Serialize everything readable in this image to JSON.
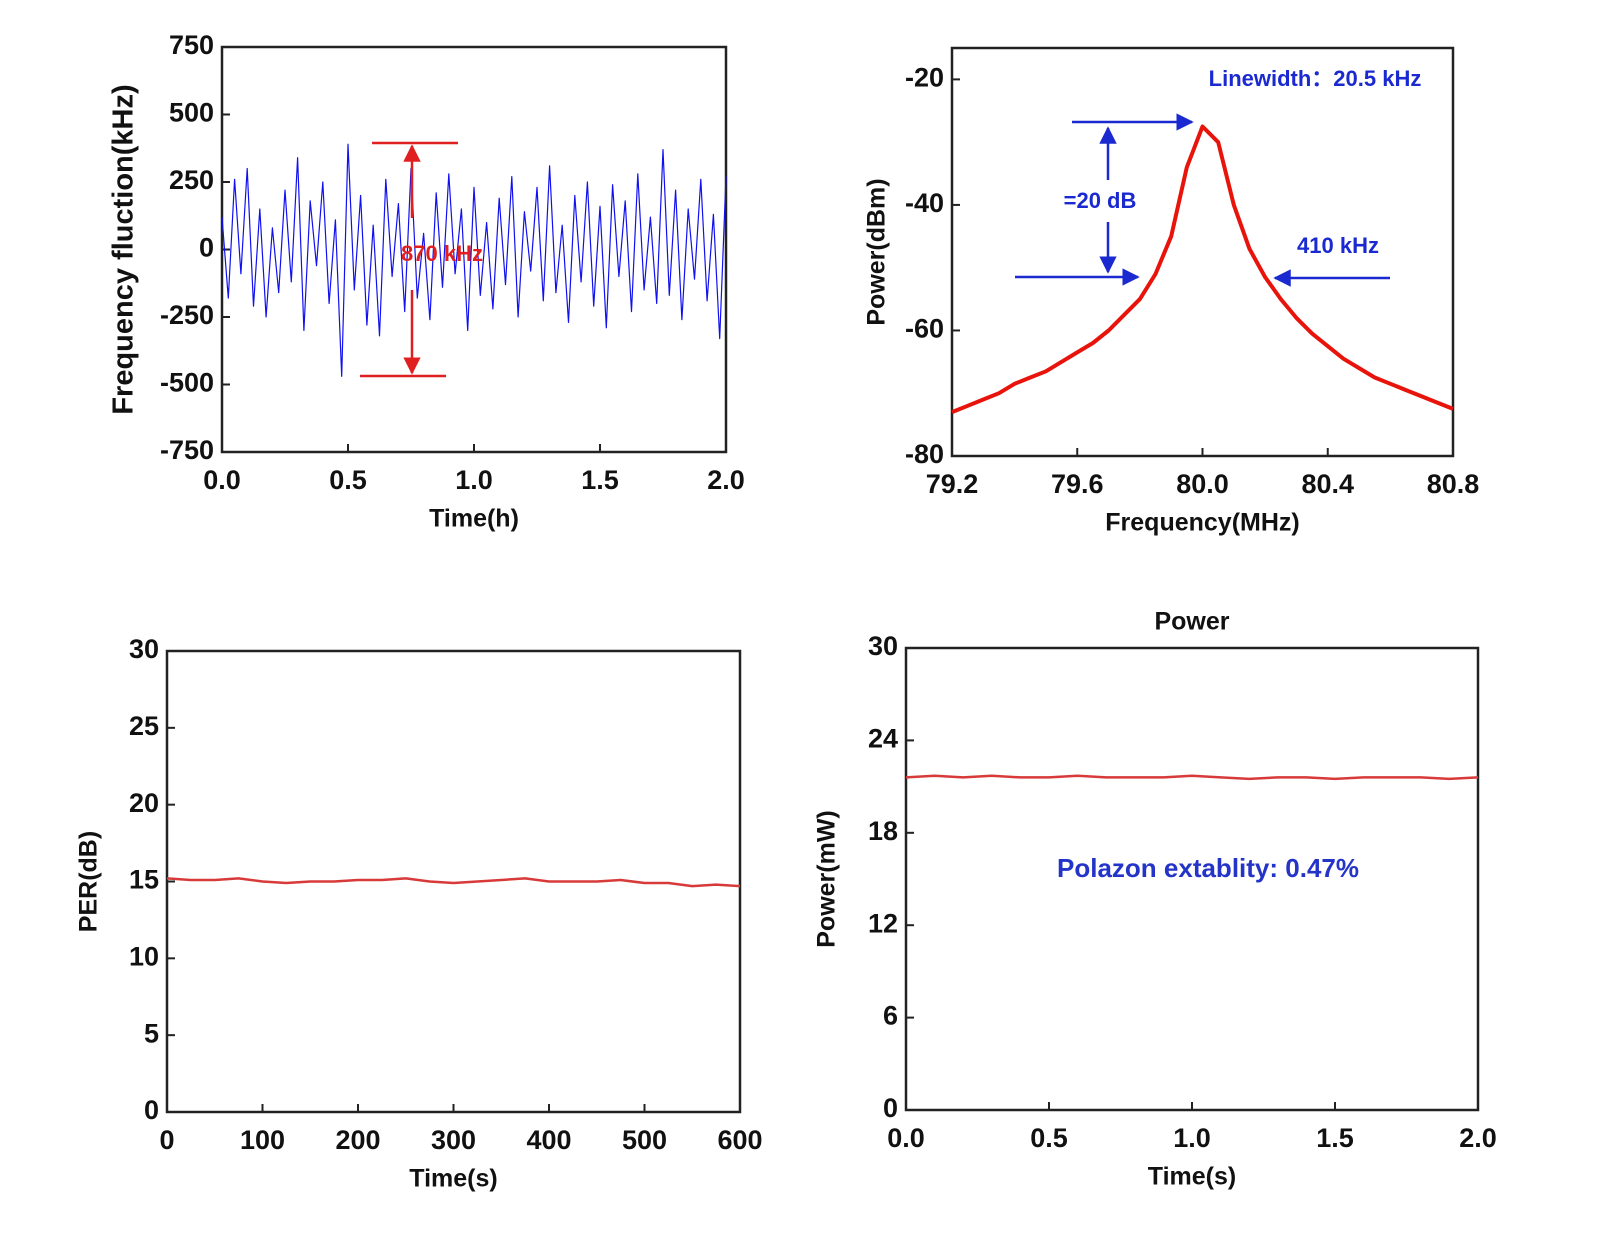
{
  "chart_data": [
    {
      "type": "line",
      "x_label": "Time(h)",
      "y_label": "Frequency fluction(kHz)",
      "color": "#1010f0",
      "xlim": [
        0,
        2
      ],
      "ylim": [
        -750,
        750
      ],
      "xticks": [
        {
          "value": 0,
          "label": "0.0"
        },
        0.5,
        {
          "value": 1,
          "label": "1.0"
        },
        1.5,
        {
          "value": 2,
          "label": "2.0"
        }
      ],
      "yticks": [
        -750,
        -500,
        -250,
        0,
        250,
        500,
        750
      ],
      "x": [
        0,
        0.025,
        0.05,
        0.075,
        0.1,
        0.125,
        0.15,
        0.175,
        0.2,
        0.225,
        0.25,
        0.275,
        0.3,
        0.325,
        0.35,
        0.375,
        0.4,
        0.425,
        0.45,
        0.475,
        0.5,
        0.525,
        0.55,
        0.575,
        0.6,
        0.625,
        0.65,
        0.675,
        0.7,
        0.725,
        0.75,
        0.775,
        0.8,
        0.825,
        0.85,
        0.875,
        0.9,
        0.925,
        0.95,
        0.975,
        1,
        1.025,
        1.05,
        1.075,
        1.1,
        1.125,
        1.15,
        1.175,
        1.2,
        1.225,
        1.25,
        1.275,
        1.3,
        1.325,
        1.35,
        1.375,
        1.4,
        1.425,
        1.45,
        1.475,
        1.5,
        1.525,
        1.55,
        1.575,
        1.6,
        1.625,
        1.65,
        1.675,
        1.7,
        1.725,
        1.75,
        1.775,
        1.8,
        1.825,
        1.85,
        1.875,
        1.9,
        1.925,
        1.95,
        1.975,
        2
      ],
      "values": [
        120,
        -180,
        260,
        -90,
        300,
        -210,
        150,
        -250,
        80,
        -160,
        220,
        -120,
        340,
        -300,
        180,
        -60,
        250,
        -200,
        110,
        -470,
        390,
        -150,
        200,
        -280,
        90,
        -320,
        260,
        -100,
        170,
        -230,
        300,
        -180,
        60,
        -260,
        210,
        -140,
        280,
        -90,
        150,
        -300,
        230,
        -170,
        100,
        -220,
        190,
        -130,
        270,
        -250,
        140,
        -80,
        230,
        -190,
        310,
        -160,
        90,
        -270,
        200,
        -120,
        250,
        -210,
        160,
        -290,
        240,
        -100,
        180,
        -230,
        280,
        -150,
        120,
        -200,
        370,
        -170,
        220,
        -260,
        150,
        -110,
        260,
        -190,
        130,
        -330,
        270
      ],
      "annotations": [
        "870 kHz"
      ]
    },
    {
      "type": "line",
      "x_label": "Frequency(MHz)",
      "y_label": "Power(dBm)",
      "color": "#e8140c",
      "xlim": [
        79.2,
        80.8
      ],
      "ylim": [
        -80,
        -15
      ],
      "xticks": [
        79.2,
        79.6,
        {
          "value": 80,
          "label": "80.0"
        },
        80.4,
        80.8
      ],
      "yticks": [
        -80,
        -60,
        -40,
        -20
      ],
      "x": [
        79.2,
        79.25,
        79.3,
        79.35,
        79.4,
        79.45,
        79.5,
        79.55,
        79.6,
        79.65,
        79.7,
        79.75,
        79.8,
        79.85,
        79.9,
        79.95,
        80,
        80.05,
        80.1,
        80.15,
        80.2,
        80.25,
        80.3,
        80.35,
        80.4,
        80.45,
        80.5,
        80.55,
        80.6,
        80.65,
        80.7,
        80.75,
        80.8
      ],
      "values": [
        -73,
        -72,
        -71,
        -70,
        -68.5,
        -67.5,
        -66.5,
        -65,
        -63.5,
        -62,
        -60,
        -57.5,
        -55,
        -51,
        -45,
        -34,
        -27.5,
        -30,
        -40,
        -47,
        -51.5,
        -55,
        -58,
        -60.5,
        -62.5,
        -64.5,
        -66,
        -67.5,
        -68.5,
        -69.5,
        -70.5,
        -71.5,
        -72.5
      ],
      "annotations": [
        "Linewidth：20.5 kHz",
        "=20 dB",
        "410 kHz"
      ]
    },
    {
      "type": "line",
      "x_label": "Time(s)",
      "y_label": "PER(dB)",
      "color": "#d83a3a",
      "xlim": [
        0,
        600
      ],
      "ylim": [
        0,
        30
      ],
      "xticks": [
        0,
        100,
        200,
        300,
        400,
        500,
        600
      ],
      "yticks": [
        0,
        5,
        10,
        15,
        20,
        25,
        30
      ],
      "x": [
        0,
        25,
        50,
        75,
        100,
        125,
        150,
        175,
        200,
        225,
        250,
        275,
        300,
        325,
        350,
        375,
        400,
        425,
        450,
        475,
        500,
        525,
        550,
        575,
        600
      ],
      "values": [
        15.2,
        15.1,
        15.1,
        15.2,
        15.0,
        14.9,
        15.0,
        15.0,
        15.1,
        15.1,
        15.2,
        15.0,
        14.9,
        15.0,
        15.1,
        15.2,
        15.0,
        15.0,
        15.0,
        15.1,
        14.9,
        14.9,
        14.7,
        14.8,
        14.7
      ]
    },
    {
      "type": "line",
      "title": "Power",
      "x_label": "Time(s)",
      "y_label": "Power(mW)",
      "color": "#d83a3a",
      "xlim": [
        0,
        2
      ],
      "ylim": [
        0,
        30
      ],
      "xticks": [
        {
          "value": 0,
          "label": "0.0"
        },
        0.5,
        {
          "value": 1,
          "label": "1.0"
        },
        1.5,
        {
          "value": 2,
          "label": "2.0"
        }
      ],
      "yticks": [
        0,
        6,
        12,
        18,
        24,
        30
      ],
      "x": [
        0,
        0.1,
        0.2,
        0.3,
        0.4,
        0.5,
        0.6,
        0.7,
        0.8,
        0.9,
        1,
        1.1,
        1.2,
        1.3,
        1.4,
        1.5,
        1.6,
        1.7,
        1.8,
        1.9,
        2
      ],
      "values": [
        21.6,
        21.7,
        21.6,
        21.7,
        21.6,
        21.6,
        21.7,
        21.6,
        21.6,
        21.6,
        21.7,
        21.6,
        21.5,
        21.6,
        21.6,
        21.5,
        21.6,
        21.6,
        21.6,
        21.5,
        21.6
      ],
      "annotations": [
        "Polazon extablity: 0.47%"
      ]
    }
  ]
}
